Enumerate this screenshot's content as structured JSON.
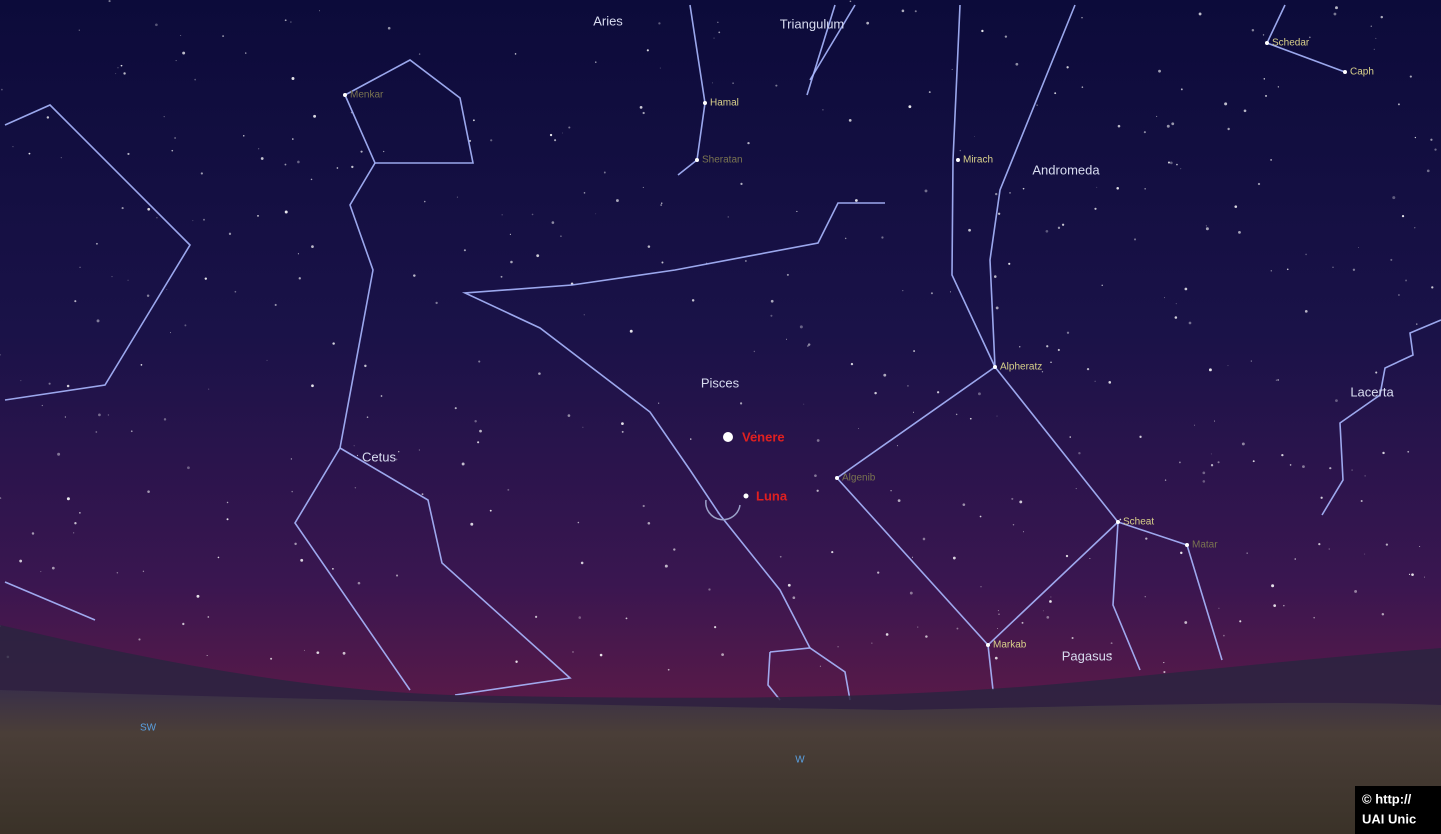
{
  "constellations": [
    "Aries",
    "Triangulum",
    "Andromeda",
    "Pisces",
    "Cetus",
    "Pagasus",
    "Lacerta"
  ],
  "stars": [
    "Hamal",
    "Sheratan",
    "Menkar",
    "Mirach",
    "Schedar",
    "Caph",
    "Alpheratz",
    "Algenib",
    "Scheat",
    "Matar",
    "Markab"
  ],
  "planets": [
    "Venere",
    "Luna"
  ],
  "compass": [
    "SW",
    "W"
  ],
  "credit": [
    "©  http://",
    "UAI  Unic"
  ]
}
